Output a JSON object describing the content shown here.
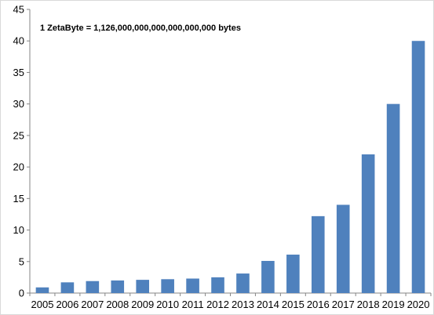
{
  "chart_data": {
    "type": "bar",
    "title": "",
    "xlabel": "",
    "ylabel": "",
    "annotation": "1 ZetaByte = 1,126,000,000,000,000,000,000 bytes",
    "categories": [
      "2005",
      "2006",
      "2007",
      "2008",
      "2009",
      "2010",
      "2011",
      "2012",
      "2013",
      "2014",
      "2015",
      "2016",
      "2017",
      "2018",
      "2019",
      "2020"
    ],
    "values": [
      0.9,
      1.7,
      1.9,
      2.0,
      2.1,
      2.2,
      2.3,
      2.5,
      3.1,
      5.1,
      6.1,
      12.2,
      14.0,
      22.0,
      30.0,
      40.0
    ],
    "ylim": [
      0,
      45
    ],
    "yticks": [
      "0",
      "5",
      "10",
      "15",
      "20",
      "25",
      "30",
      "35",
      "40",
      "45"
    ],
    "grid": false,
    "bar_color": "#4f81bd",
    "axis_color": "#868686"
  }
}
